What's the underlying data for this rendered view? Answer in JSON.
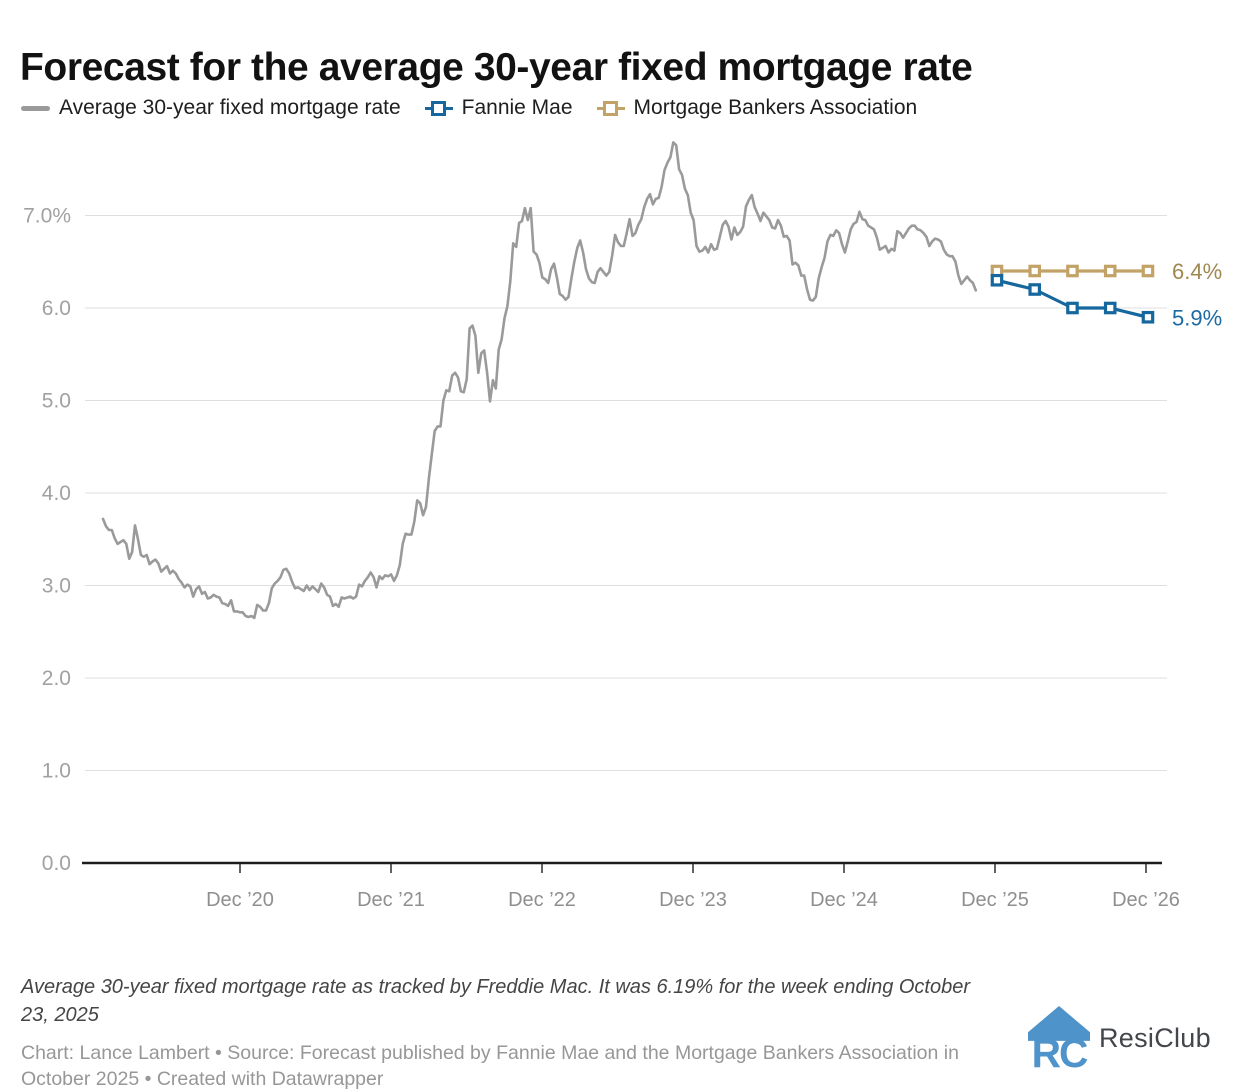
{
  "title": "Forecast for the average 30-year fixed mortgage rate",
  "legend": {
    "items": [
      {
        "label": "Average 30-year fixed mortgage rate",
        "swatch": "line",
        "color": "#9a9a9a"
      },
      {
        "label": "Fannie Mae",
        "swatch": "square",
        "color": "#15679d"
      },
      {
        "label": "Mortgage Bankers Association",
        "swatch": "square",
        "color": "#c2a266"
      }
    ]
  },
  "chart_data": {
    "type": "line",
    "title": "Forecast for the average 30-year fixed mortgage rate",
    "xlabel": "",
    "ylabel": "",
    "ylim": [
      0,
      7.9
    ],
    "grid": "horizontal",
    "legend_position": "top",
    "y_ticks": [
      {
        "value": 0,
        "label": "0.0"
      },
      {
        "value": 1,
        "label": "1.0"
      },
      {
        "value": 2,
        "label": "2.0"
      },
      {
        "value": 3,
        "label": "3.0"
      },
      {
        "value": 4,
        "label": "4.0"
      },
      {
        "value": 5,
        "label": "5.0"
      },
      {
        "value": 6,
        "label": "6.0"
      },
      {
        "value": 7,
        "label": "7.0%"
      }
    ],
    "x_ticks": [
      {
        "t": 2020.917,
        "label": "Dec ’20"
      },
      {
        "t": 2021.917,
        "label": "Dec ’21"
      },
      {
        "t": 2022.917,
        "label": "Dec ’22"
      },
      {
        "t": 2023.917,
        "label": "Dec ’23"
      },
      {
        "t": 2024.917,
        "label": "Dec ’24"
      },
      {
        "t": 2025.917,
        "label": "Dec ’25"
      },
      {
        "t": 2026.917,
        "label": "Dec ’26"
      }
    ],
    "series": [
      {
        "name": "Average 30-year fixed mortgage rate",
        "kind": "weekly-line",
        "color": "#9a9a9a",
        "start_year": 2020.01,
        "end_year": 2025.79,
        "values": [
          3.72,
          3.64,
          3.6,
          3.6,
          3.51,
          3.45,
          3.47,
          3.49,
          3.45,
          3.29,
          3.36,
          3.65,
          3.5,
          3.33,
          3.31,
          3.33,
          3.23,
          3.26,
          3.28,
          3.24,
          3.15,
          3.18,
          3.21,
          3.13,
          3.16,
          3.13,
          3.07,
          3.03,
          2.98,
          3.01,
          2.99,
          2.88,
          2.96,
          2.99,
          2.91,
          2.93,
          2.86,
          2.87,
          2.9,
          2.88,
          2.87,
          2.81,
          2.8,
          2.78,
          2.84,
          2.72,
          2.72,
          2.71,
          2.71,
          2.67,
          2.66,
          2.67,
          2.65,
          2.79,
          2.77,
          2.73,
          2.73,
          2.81,
          2.97,
          3.02,
          3.05,
          3.09,
          3.17,
          3.18,
          3.13,
          3.04,
          2.97,
          2.98,
          2.96,
          2.94,
          3.0,
          2.95,
          2.99,
          2.96,
          2.93,
          3.02,
          2.98,
          2.9,
          2.88,
          2.78,
          2.8,
          2.77,
          2.87,
          2.86,
          2.87,
          2.88,
          2.86,
          2.88,
          3.01,
          2.99,
          3.05,
          3.09,
          3.14,
          3.09,
          2.98,
          3.1,
          3.07,
          3.11,
          3.1,
          3.12,
          3.05,
          3.11,
          3.22,
          3.45,
          3.56,
          3.55,
          3.55,
          3.69,
          3.92,
          3.89,
          3.76,
          3.85,
          4.16,
          4.42,
          4.67,
          4.72,
          4.72,
          5.0,
          5.11,
          5.1,
          5.27,
          5.3,
          5.25,
          5.1,
          5.09,
          5.23,
          5.78,
          5.81,
          5.7,
          5.3,
          5.51,
          5.54,
          5.3,
          4.99,
          5.22,
          5.13,
          5.55,
          5.66,
          5.89,
          6.02,
          6.29,
          6.7,
          6.66,
          6.92,
          6.94,
          7.08,
          6.95,
          7.08,
          6.61,
          6.58,
          6.49,
          6.33,
          6.31,
          6.27,
          6.42,
          6.48,
          6.33,
          6.15,
          6.13,
          6.09,
          6.12,
          6.32,
          6.5,
          6.65,
          6.73,
          6.6,
          6.42,
          6.32,
          6.28,
          6.27,
          6.39,
          6.43,
          6.39,
          6.35,
          6.39,
          6.57,
          6.79,
          6.71,
          6.67,
          6.67,
          6.81,
          6.96,
          6.78,
          6.81,
          6.9,
          6.96,
          7.09,
          7.18,
          7.23,
          7.12,
          7.18,
          7.19,
          7.31,
          7.49,
          7.57,
          7.63,
          7.79,
          7.76,
          7.5,
          7.44,
          7.29,
          7.22,
          7.03,
          6.95,
          6.67,
          6.61,
          6.62,
          6.66,
          6.6,
          6.69,
          6.63,
          6.64,
          6.77,
          6.9,
          6.94,
          6.88,
          6.74,
          6.87,
          6.79,
          6.82,
          6.88,
          7.1,
          7.17,
          7.22,
          7.09,
          7.02,
          6.94,
          7.03,
          6.99,
          6.95,
          6.87,
          6.86,
          6.95,
          6.89,
          6.77,
          6.78,
          6.73,
          6.47,
          6.49,
          6.46,
          6.35,
          6.35,
          6.2,
          6.09,
          6.08,
          6.12,
          6.32,
          6.44,
          6.54,
          6.72,
          6.79,
          6.78,
          6.84,
          6.81,
          6.69,
          6.6,
          6.72,
          6.85,
          6.91,
          6.93,
          7.04,
          6.96,
          6.95,
          6.89,
          6.87,
          6.85,
          6.76,
          6.63,
          6.65,
          6.67,
          6.6,
          6.64,
          6.62,
          6.83,
          6.81,
          6.76,
          6.81,
          6.86,
          6.89,
          6.89,
          6.85,
          6.84,
          6.81,
          6.77,
          6.67,
          6.72,
          6.75,
          6.74,
          6.72,
          6.63,
          6.58,
          6.56,
          6.56,
          6.5,
          6.35,
          6.26,
          6.3,
          6.34,
          6.3,
          6.27,
          6.19
        ]
      },
      {
        "name": "Fannie Mae",
        "kind": "forecast",
        "color": "#15679d",
        "label_color": "#1b6aa1",
        "marker": "square",
        "quarters": [
          "Q4 2025",
          "Q1 2026",
          "Q2 2026",
          "Q3 2026",
          "Q4 2026"
        ],
        "t": [
          2025.93,
          2026.18,
          2026.43,
          2026.68,
          2026.93
        ],
        "values": [
          6.3,
          6.2,
          6.0,
          6.0,
          5.9
        ],
        "end_label": "5.9%"
      },
      {
        "name": "Mortgage Bankers Association",
        "kind": "forecast",
        "color": "#c2a266",
        "label_color": "#9f8850",
        "marker": "square",
        "quarters": [
          "Q4 2025",
          "Q1 2026",
          "Q2 2026",
          "Q3 2026",
          "Q4 2026"
        ],
        "t": [
          2025.93,
          2026.18,
          2026.43,
          2026.68,
          2026.93
        ],
        "values": [
          6.4,
          6.4,
          6.4,
          6.4,
          6.4
        ],
        "end_label": "6.4%"
      }
    ]
  },
  "notes": {
    "text": "Average 30-year fixed mortgage rate as tracked by Freddie Mac. It was 6.19% for the week ending October 23, 2025"
  },
  "credit": {
    "text": "Chart: Lance Lambert • Source: Forecast published by Fannie Mae and the Mortgage Bankers Association in October 2025 • Created with Datawrapper"
  },
  "logo": {
    "monogram": "RC",
    "text": "ResiClub",
    "color": "#4e93c9"
  }
}
